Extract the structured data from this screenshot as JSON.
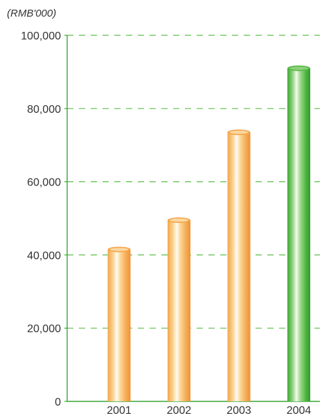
{
  "chart_data": {
    "type": "bar",
    "unit_label": "(RMB'000)",
    "categories": [
      "2001",
      "2002",
      "2003",
      "2004"
    ],
    "values": [
      41500,
      49500,
      73500,
      91000
    ],
    "ylim": [
      0,
      100000
    ],
    "yticks": [
      0,
      20000,
      40000,
      60000,
      80000,
      100000
    ],
    "ytick_labels": [
      "0",
      "20,000",
      "40,000",
      "60,000",
      "80,000",
      "100,000"
    ],
    "grid": true,
    "colors": {
      "bar_default": "#f5a54a",
      "bar_highlight": "#56b846",
      "grid": "#5cbf4a",
      "axis": "#3aa636"
    },
    "highlight_index": 3
  }
}
